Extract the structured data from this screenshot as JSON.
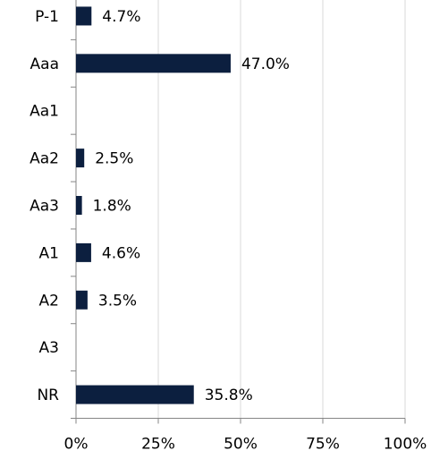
{
  "chart_data": {
    "type": "bar",
    "orientation": "horizontal",
    "categories": [
      "P-1",
      "Aaa",
      "Aa1",
      "Aa2",
      "Aa3",
      "A1",
      "A2",
      "A3",
      "NR"
    ],
    "values": [
      4.7,
      47.0,
      null,
      2.5,
      1.8,
      4.6,
      3.5,
      null,
      35.8
    ],
    "value_labels": [
      "4.7%",
      "47.0%",
      null,
      "2.5%",
      "1.8%",
      "4.6%",
      "3.5%",
      null,
      "35.8%"
    ],
    "color": "#0c1f3f",
    "xlim": [
      0,
      100
    ],
    "xticks": [
      {
        "value": 0,
        "label": "0%"
      },
      {
        "value": 25,
        "label": "25%"
      },
      {
        "value": 50,
        "label": "50%"
      },
      {
        "value": 75,
        "label": "75%"
      },
      {
        "value": 100,
        "label": "100%"
      }
    ],
    "grid": true
  }
}
